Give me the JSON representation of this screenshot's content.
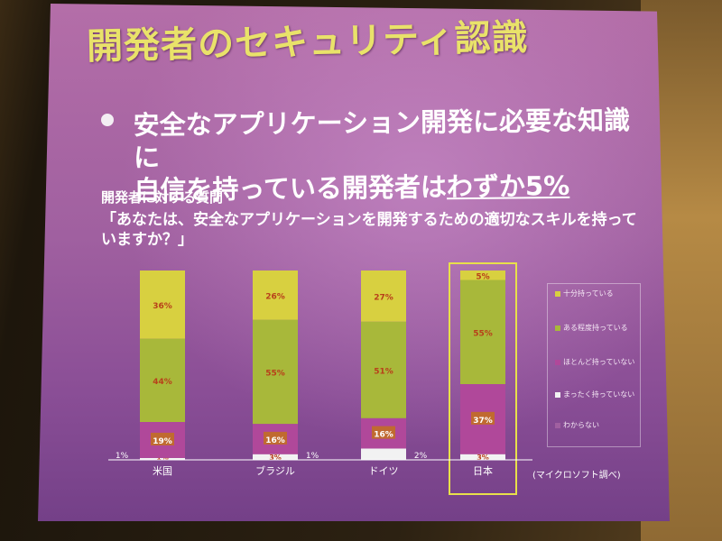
{
  "slide": {
    "title": "開発者のセキュリティ認識",
    "bullet_line1": "安全なアプリケーション開発に必要な知識に",
    "bullet_line2_prefix": "自信を持っている開発者は",
    "bullet_line2_emph": "わずか5%",
    "question_label": "開発者に対する質問",
    "question_text": "「あなたは、安全なアプリケーションを開発するための適切なスキルを持っていますか？」",
    "source": "(マイクロソフト調べ)"
  },
  "chart_data": {
    "type": "bar",
    "stacked": true,
    "categories": [
      "米国",
      "ブラジル",
      "ドイツ",
      "日本"
    ],
    "series": [
      {
        "name": "十分持っている",
        "values": [
          36,
          26,
          27,
          5
        ],
        "labels": [
          "36%",
          "26%",
          "27%",
          "5%"
        ],
        "color": "#d8d040"
      },
      {
        "name": "ある程度持っている",
        "values": [
          44,
          55,
          51,
          55
        ],
        "labels": [
          "44%",
          "55%",
          "51%",
          "55%"
        ],
        "color": "#a8b83a"
      },
      {
        "name": "ほとんど持っていない",
        "values": [
          19,
          16,
          16,
          37
        ],
        "labels": [
          "19%",
          "16%",
          "16%",
          "37%"
        ],
        "color": "#b0489a"
      },
      {
        "name": "まったく持っていない",
        "values": [
          1,
          3,
          6,
          3
        ],
        "labels": [
          "1%",
          "3%",
          "",
          "3%"
        ],
        "color": "#f2f2f2"
      },
      {
        "name": "わからない",
        "values": [
          0,
          0,
          0,
          0
        ],
        "labels": [
          "",
          "",
          "",
          ""
        ],
        "color": "#a060a0"
      }
    ],
    "outside_labels": [
      "1%",
      "1%",
      "2%",
      ""
    ],
    "highlight_category": "日本",
    "ylim": [
      0,
      100
    ],
    "label_color": "#b8401a",
    "legend_position": "right"
  }
}
